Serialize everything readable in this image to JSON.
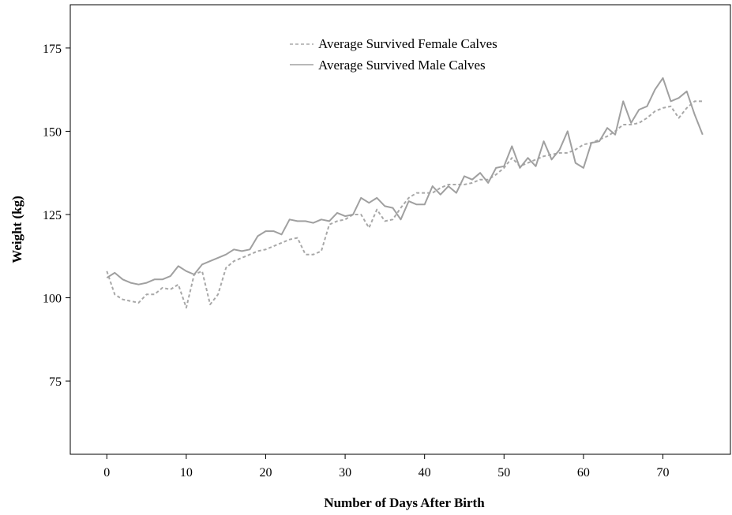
{
  "chart_data": {
    "type": "line",
    "title": "",
    "xlabel": "Number of Days After Birth",
    "ylabel": "Weight (kg)",
    "xlim": [
      -4.6,
      78.5
    ],
    "ylim": [
      53,
      188
    ],
    "xticks": [
      0,
      10,
      20,
      30,
      40,
      50,
      60,
      70
    ],
    "yticks": [
      75,
      100,
      125,
      150,
      175
    ],
    "grid": false,
    "legend_position": "top-center",
    "x": [
      0,
      1,
      2,
      3,
      4,
      5,
      6,
      7,
      8,
      9,
      10,
      11,
      12,
      13,
      14,
      15,
      16,
      17,
      18,
      19,
      20,
      21,
      22,
      23,
      24,
      25,
      26,
      27,
      28,
      29,
      30,
      31,
      32,
      33,
      34,
      35,
      36,
      37,
      38,
      39,
      40,
      41,
      42,
      43,
      44,
      45,
      46,
      47,
      48,
      49,
      50,
      51,
      52,
      53,
      54,
      55,
      56,
      57,
      58,
      59,
      60,
      61,
      62,
      63,
      64,
      65,
      66,
      67,
      68,
      69,
      70,
      71,
      72,
      73,
      74,
      75
    ],
    "series": [
      {
        "name": "Average Survived Female Calves",
        "color": "#a8a8a8",
        "dash": "dashed",
        "values": [
          108,
          101,
          99.5,
          99,
          98.5,
          101,
          101,
          103,
          102.5,
          104,
          97,
          107,
          108,
          98,
          101,
          109,
          111,
          112,
          113,
          114,
          114.5,
          115.5,
          116.5,
          117.5,
          118,
          113,
          113,
          114,
          122,
          123,
          123.5,
          125,
          125,
          121,
          126.5,
          123,
          123.5,
          127,
          130,
          131.5,
          131.5,
          131.5,
          133,
          134,
          134,
          134,
          134.5,
          135.5,
          135.5,
          137,
          139,
          142,
          139.5,
          140.5,
          141.5,
          142.5,
          143,
          143.5,
          143.5,
          144.5,
          146,
          146.5,
          147.5,
          148.5,
          150,
          152,
          152,
          152.5,
          154,
          156,
          157,
          157.5,
          154,
          157,
          159,
          159
        ]
      },
      {
        "name": "Average Survived Male Calves",
        "color": "#a0a0a0",
        "dash": "solid",
        "values": [
          106,
          107.5,
          105.5,
          104.5,
          104,
          104.5,
          105.5,
          105.5,
          106.5,
          109.5,
          108,
          107,
          110,
          111,
          112,
          113,
          114.5,
          114,
          114.5,
          118.5,
          120,
          120,
          119,
          123.5,
          123,
          123,
          122.5,
          123.5,
          123,
          125.5,
          124.5,
          125,
          130,
          128.5,
          130,
          127.5,
          127,
          123.5,
          129,
          128,
          128,
          133.5,
          131,
          133.5,
          131.5,
          136.5,
          135.5,
          137.5,
          134.5,
          139,
          139.5,
          145.5,
          139,
          142,
          139.5,
          147,
          141.5,
          144.5,
          150,
          140.5,
          139,
          146.5,
          147,
          151,
          149,
          159,
          152.5,
          156.5,
          157.5,
          162.5,
          166,
          159,
          160,
          162,
          155,
          149
        ]
      }
    ]
  }
}
